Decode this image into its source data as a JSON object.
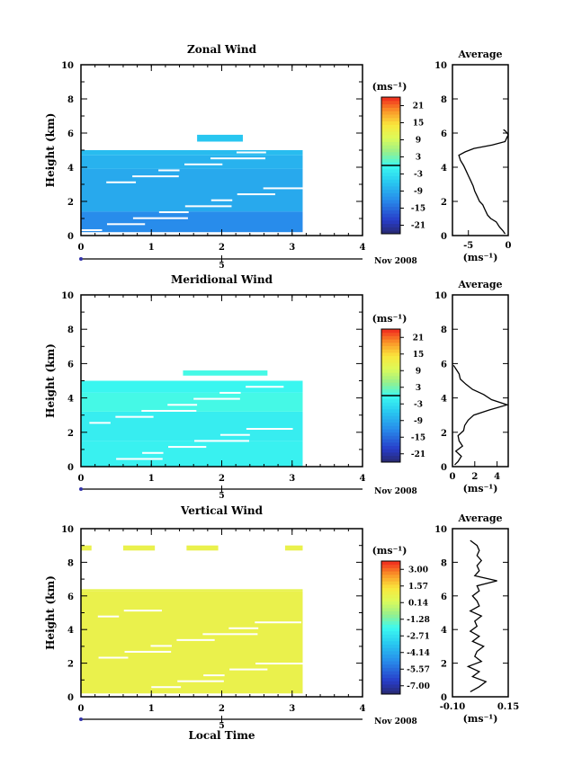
{
  "chart_data": [
    {
      "type": "heatmap",
      "title": "Zonal Wind",
      "ylabel": "Height (km)",
      "xlabel": "",
      "xlim": [
        0,
        4
      ],
      "ylim": [
        0,
        10
      ],
      "x_ticks": [
        "0",
        "1",
        "2",
        "3",
        "4"
      ],
      "y_ticks": [
        "0",
        "2",
        "4",
        "6",
        "8",
        "10"
      ],
      "date_label": "Nov 2008",
      "date_axis_tick": "5",
      "colorbar": {
        "unit": "(ms⁻¹)",
        "ticks": [
          "21",
          "15",
          "9",
          "3",
          "-3",
          "-9",
          "-15",
          "-21"
        ],
        "min": -24,
        "max": 24,
        "zero_line": true
      },
      "field_cells": [
        {
          "t0": 0.0,
          "t1": 3.15,
          "z0": 0.2,
          "z1": 1.4,
          "v": -12
        },
        {
          "t0": 0.0,
          "t1": 3.15,
          "z0": 1.4,
          "z1": 3.9,
          "v": -9
        },
        {
          "t0": 0.0,
          "t1": 3.15,
          "z0": 3.9,
          "z1": 4.7,
          "v": -8
        },
        {
          "t0": 0.0,
          "t1": 3.15,
          "z0": 4.7,
          "z1": 5.0,
          "v": -7
        },
        {
          "t0": 1.65,
          "t1": 2.3,
          "z0": 5.5,
          "z1": 5.9,
          "v": -6
        }
      ],
      "profile": {
        "title": "Average",
        "xlabel": "(ms⁻¹)",
        "xlim": [
          -7,
          0
        ],
        "x_ticks": [
          "-5",
          "0"
        ],
        "y_ticks": [
          "0",
          "2",
          "4",
          "6",
          "8",
          "10"
        ],
        "z": [
          0.1,
          0.3,
          0.5,
          0.8,
          1.0,
          1.2,
          1.5,
          1.8,
          2.0,
          2.3,
          2.6,
          2.9,
          3.2,
          3.5,
          3.8,
          4.1,
          4.4,
          4.7,
          4.9,
          5.1,
          5.3,
          5.5,
          5.7,
          5.9,
          6.1,
          6.2
        ],
        "u": [
          -0.4,
          -0.7,
          -1.1,
          -1.5,
          -2.2,
          -2.6,
          -2.9,
          -3.2,
          -3.6,
          -3.9,
          -4.2,
          -4.4,
          -4.7,
          -5.0,
          -5.3,
          -5.6,
          -6.0,
          -6.2,
          -5.4,
          -4.3,
          -2.0,
          -0.4,
          -0.2,
          0.0,
          -0.3,
          -0.6
        ]
      }
    },
    {
      "type": "heatmap",
      "title": "Meridional Wind",
      "ylabel": "Height (km)",
      "xlabel": "",
      "xlim": [
        0,
        4
      ],
      "ylim": [
        0,
        10
      ],
      "x_ticks": [
        "0",
        "1",
        "2",
        "3",
        "4"
      ],
      "y_ticks": [
        "0",
        "2",
        "4",
        "6",
        "8",
        "10"
      ],
      "date_label": "Nov 2008",
      "date_axis_tick": "5",
      "colorbar": {
        "unit": "(ms⁻¹)",
        "ticks": [
          "21",
          "15",
          "9",
          "3",
          "-3",
          "-9",
          "-15",
          "-21"
        ],
        "min": -24,
        "max": 24,
        "zero_line": true
      },
      "field_cells": [
        {
          "t0": 0.0,
          "t1": 3.15,
          "z0": 0.0,
          "z1": 1.5,
          "v": -1
        },
        {
          "t0": 0.0,
          "t1": 3.15,
          "z0": 1.5,
          "z1": 3.2,
          "v": -1.5
        },
        {
          "t0": 0.0,
          "t1": 3.15,
          "z0": 3.2,
          "z1": 4.3,
          "v": 0.5
        },
        {
          "t0": 0.0,
          "t1": 3.15,
          "z0": 4.3,
          "z1": 5.0,
          "v": -0.5
        },
        {
          "t0": 1.45,
          "t1": 2.65,
          "z0": 5.3,
          "z1": 5.6,
          "v": 0.5
        }
      ],
      "profile": {
        "title": "Average",
        "xlabel": "(ms⁻¹)",
        "xlim": [
          0,
          5
        ],
        "x_ticks": [
          "0",
          "2",
          "4"
        ],
        "y_ticks": [
          "0",
          "2",
          "4",
          "6",
          "8",
          "10"
        ],
        "z": [
          0.1,
          0.3,
          0.6,
          0.9,
          1.2,
          1.5,
          1.8,
          2.1,
          2.4,
          2.7,
          3.0,
          3.3,
          3.6,
          3.9,
          4.2,
          4.5,
          4.8,
          5.1,
          5.4,
          5.7,
          5.9
        ],
        "u": [
          0.2,
          0.5,
          0.8,
          0.3,
          0.9,
          0.6,
          0.5,
          1.0,
          1.1,
          1.4,
          1.9,
          3.3,
          4.9,
          3.5,
          2.8,
          1.8,
          1.2,
          0.7,
          0.6,
          0.3,
          0.1
        ]
      }
    },
    {
      "type": "heatmap",
      "title": "Vertical Wind",
      "ylabel": "Height (km)",
      "xlabel": "Local Time",
      "xlim": [
        0,
        4
      ],
      "ylim": [
        0,
        10
      ],
      "x_ticks": [
        "0",
        "1",
        "2",
        "3",
        "4"
      ],
      "y_ticks": [
        "0",
        "2",
        "4",
        "6",
        "8",
        "10"
      ],
      "date_label": "Nov 2008",
      "date_axis_tick": "5",
      "colorbar": {
        "unit": "(ms⁻¹)",
        "ticks": [
          "3.00",
          "1.57",
          "0.14",
          "-1.28",
          "-2.71",
          "-4.14",
          "-5.57",
          "-7.00"
        ],
        "min": -7.5,
        "max": 3.5,
        "zero_line": false
      },
      "field_cells": [
        {
          "t0": 0.0,
          "t1": 3.15,
          "z0": 0.2,
          "z1": 6.3,
          "v": 0.7
        },
        {
          "t0": 0.0,
          "t1": 3.15,
          "z0": 6.3,
          "z1": 6.4,
          "v": 0.6
        },
        {
          "t0": 0.0,
          "t1": 0.15,
          "z0": 8.7,
          "z1": 9.0,
          "v": 0.7
        },
        {
          "t0": 0.6,
          "t1": 1.05,
          "z0": 8.7,
          "z1": 9.0,
          "v": 0.7
        },
        {
          "t0": 1.5,
          "t1": 1.95,
          "z0": 8.7,
          "z1": 9.0,
          "v": 0.7
        },
        {
          "t0": 2.9,
          "t1": 3.15,
          "z0": 8.7,
          "z1": 9.0,
          "v": 0.7
        }
      ],
      "profile": {
        "title": "Average",
        "xlabel": "(ms⁻¹)",
        "xlim": [
          -0.1,
          0.15
        ],
        "x_ticks": [
          "-0.10",
          "0.15"
        ],
        "y_ticks": [
          "0",
          "2",
          "4",
          "6",
          "8",
          "10"
        ],
        "z": [
          0.3,
          0.6,
          0.9,
          1.2,
          1.5,
          1.8,
          2.1,
          2.4,
          2.7,
          3.0,
          3.3,
          3.6,
          3.9,
          4.2,
          4.5,
          4.8,
          5.1,
          5.4,
          5.7,
          6.0,
          6.3,
          6.6,
          6.9,
          7.2,
          7.5,
          7.8,
          8.1,
          8.4,
          8.7,
          9.0,
          9.3
        ],
        "u": [
          -0.02,
          0.02,
          0.05,
          -0.01,
          0.02,
          -0.03,
          0.03,
          0.0,
          0.01,
          0.04,
          -0.01,
          0.02,
          -0.02,
          0.01,
          0.0,
          0.03,
          -0.02,
          0.02,
          0.01,
          -0.01,
          0.02,
          0.01,
          0.1,
          0.0,
          0.02,
          0.01,
          0.03,
          0.01,
          0.02,
          0.01,
          -0.02
        ]
      }
    }
  ]
}
